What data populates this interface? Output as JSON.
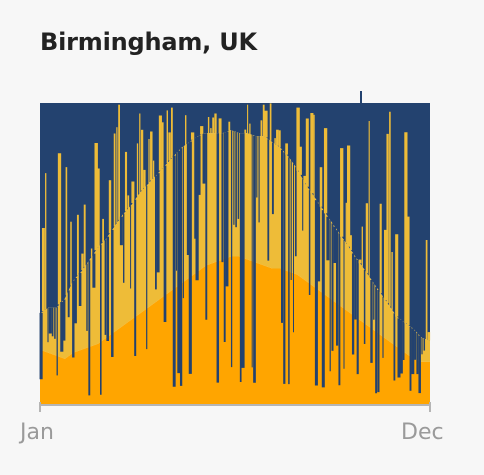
{
  "title": "Birmingham, UK",
  "chart_data": {
    "type": "area",
    "title": "Birmingham, UK",
    "xlabel": "",
    "ylabel": "",
    "x_ticks": [
      "Jan",
      "Dec"
    ],
    "ylim": [
      0,
      1
    ],
    "grid": false,
    "colors": {
      "series_low": "#ffa500",
      "series_mid": "#eebc38",
      "series_top": "#23426f"
    },
    "series": [
      {
        "key": "low",
        "values": [
          0.18,
          0.17,
          0.16,
          0.15,
          0.17,
          0.18,
          0.19,
          0.2,
          0.22,
          0.24,
          0.26,
          0.28,
          0.3,
          0.32,
          0.34,
          0.36,
          0.38,
          0.4,
          0.42,
          0.44,
          0.46,
          0.47,
          0.48,
          0.49,
          0.49,
          0.48,
          0.47,
          0.46,
          0.45,
          0.45,
          0.44,
          0.43,
          0.41,
          0.39,
          0.37,
          0.35,
          0.33,
          0.31,
          0.29,
          0.27,
          0.25,
          0.23,
          0.21,
          0.19,
          0.17,
          0.15,
          0.14,
          0.14
        ]
      },
      {
        "key": "mid",
        "values": [
          0.12,
          0.15,
          0.16,
          0.2,
          0.24,
          0.26,
          0.29,
          0.32,
          0.33,
          0.35,
          0.37,
          0.38,
          0.4,
          0.41,
          0.42,
          0.43,
          0.44,
          0.45,
          0.45,
          0.45,
          0.44,
          0.43,
          0.42,
          0.42,
          0.41,
          0.42,
          0.42,
          0.43,
          0.42,
          0.4,
          0.38,
          0.35,
          0.32,
          0.3,
          0.28,
          0.26,
          0.24,
          0.22,
          0.2,
          0.18,
          0.16,
          0.14,
          0.12,
          0.1,
          0.1,
          0.1,
          0.08,
          0.07
        ]
      },
      {
        "key": "top",
        "values": [
          0.7,
          0.68,
          0.68,
          0.65,
          0.59,
          0.56,
          0.52,
          0.48,
          0.45,
          0.41,
          0.37,
          0.34,
          0.3,
          0.27,
          0.24,
          0.21,
          0.18,
          0.15,
          0.13,
          0.11,
          0.1,
          0.1,
          0.1,
          0.09,
          0.1,
          0.1,
          0.11,
          0.11,
          0.13,
          0.15,
          0.18,
          0.22,
          0.27,
          0.31,
          0.35,
          0.39,
          0.43,
          0.47,
          0.51,
          0.55,
          0.59,
          0.63,
          0.67,
          0.71,
          0.73,
          0.75,
          0.78,
          0.79
        ]
      }
    ]
  }
}
